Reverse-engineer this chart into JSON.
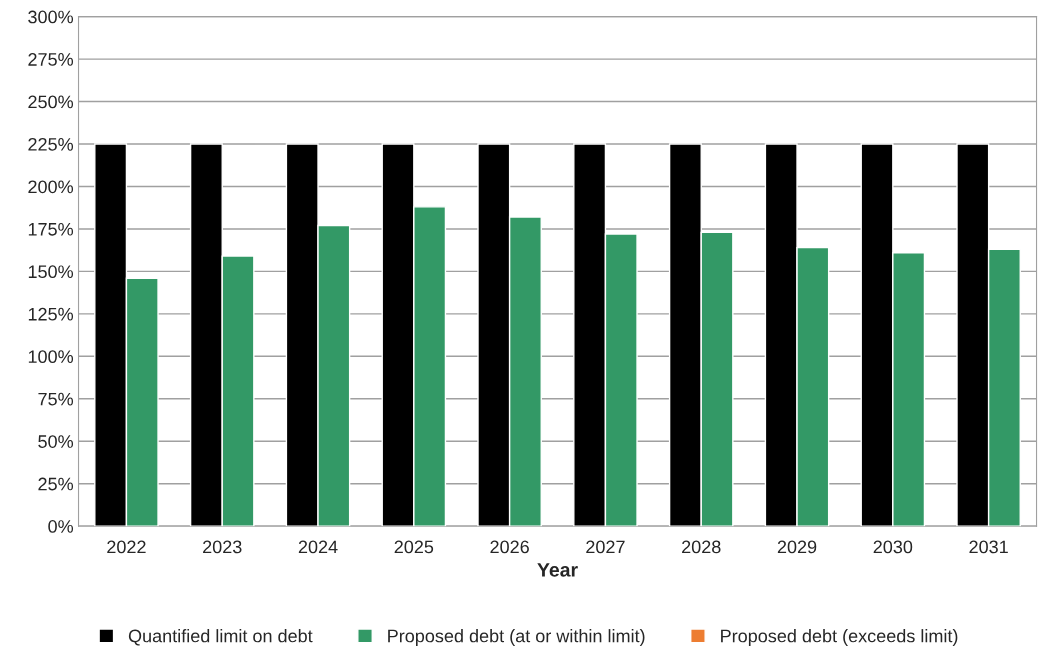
{
  "chart_data": {
    "type": "bar",
    "xlabel": "Year",
    "categories": [
      "2022",
      "2023",
      "2024",
      "2025",
      "2026",
      "2027",
      "2028",
      "2029",
      "2030",
      "2031"
    ],
    "series": [
      {
        "name": "Quantified limit on debt",
        "color": "#000000",
        "values": [
          225,
          225,
          225,
          225,
          225,
          225,
          225,
          225,
          225,
          225
        ]
      },
      {
        "name": "Proposed debt (at or within limit)",
        "color": "#339966",
        "values": [
          146,
          159,
          177,
          188,
          182,
          172,
          173,
          164,
          161,
          163
        ]
      },
      {
        "name": "Proposed debt (exceeds limit)",
        "color": "#ed7d31",
        "values": [
          null,
          null,
          null,
          null,
          null,
          null,
          null,
          null,
          null,
          null
        ]
      }
    ],
    "ylim": [
      0,
      300
    ],
    "yticks": [
      {
        "value": 0,
        "label": "0%"
      },
      {
        "value": 25,
        "label": "25%"
      },
      {
        "value": 50,
        "label": "50%"
      },
      {
        "value": 75,
        "label": "75%"
      },
      {
        "value": 100,
        "label": "100%"
      },
      {
        "value": 125,
        "label": "125%"
      },
      {
        "value": 150,
        "label": "150%"
      },
      {
        "value": 175,
        "label": "175%"
      },
      {
        "value": 200,
        "label": "200%"
      },
      {
        "value": 225,
        "label": "225%"
      },
      {
        "value": 250,
        "label": "250%"
      },
      {
        "value": 275,
        "label": "275%"
      },
      {
        "value": 300,
        "label": "300%"
      }
    ],
    "grid": "y",
    "legend": "bottom"
  }
}
